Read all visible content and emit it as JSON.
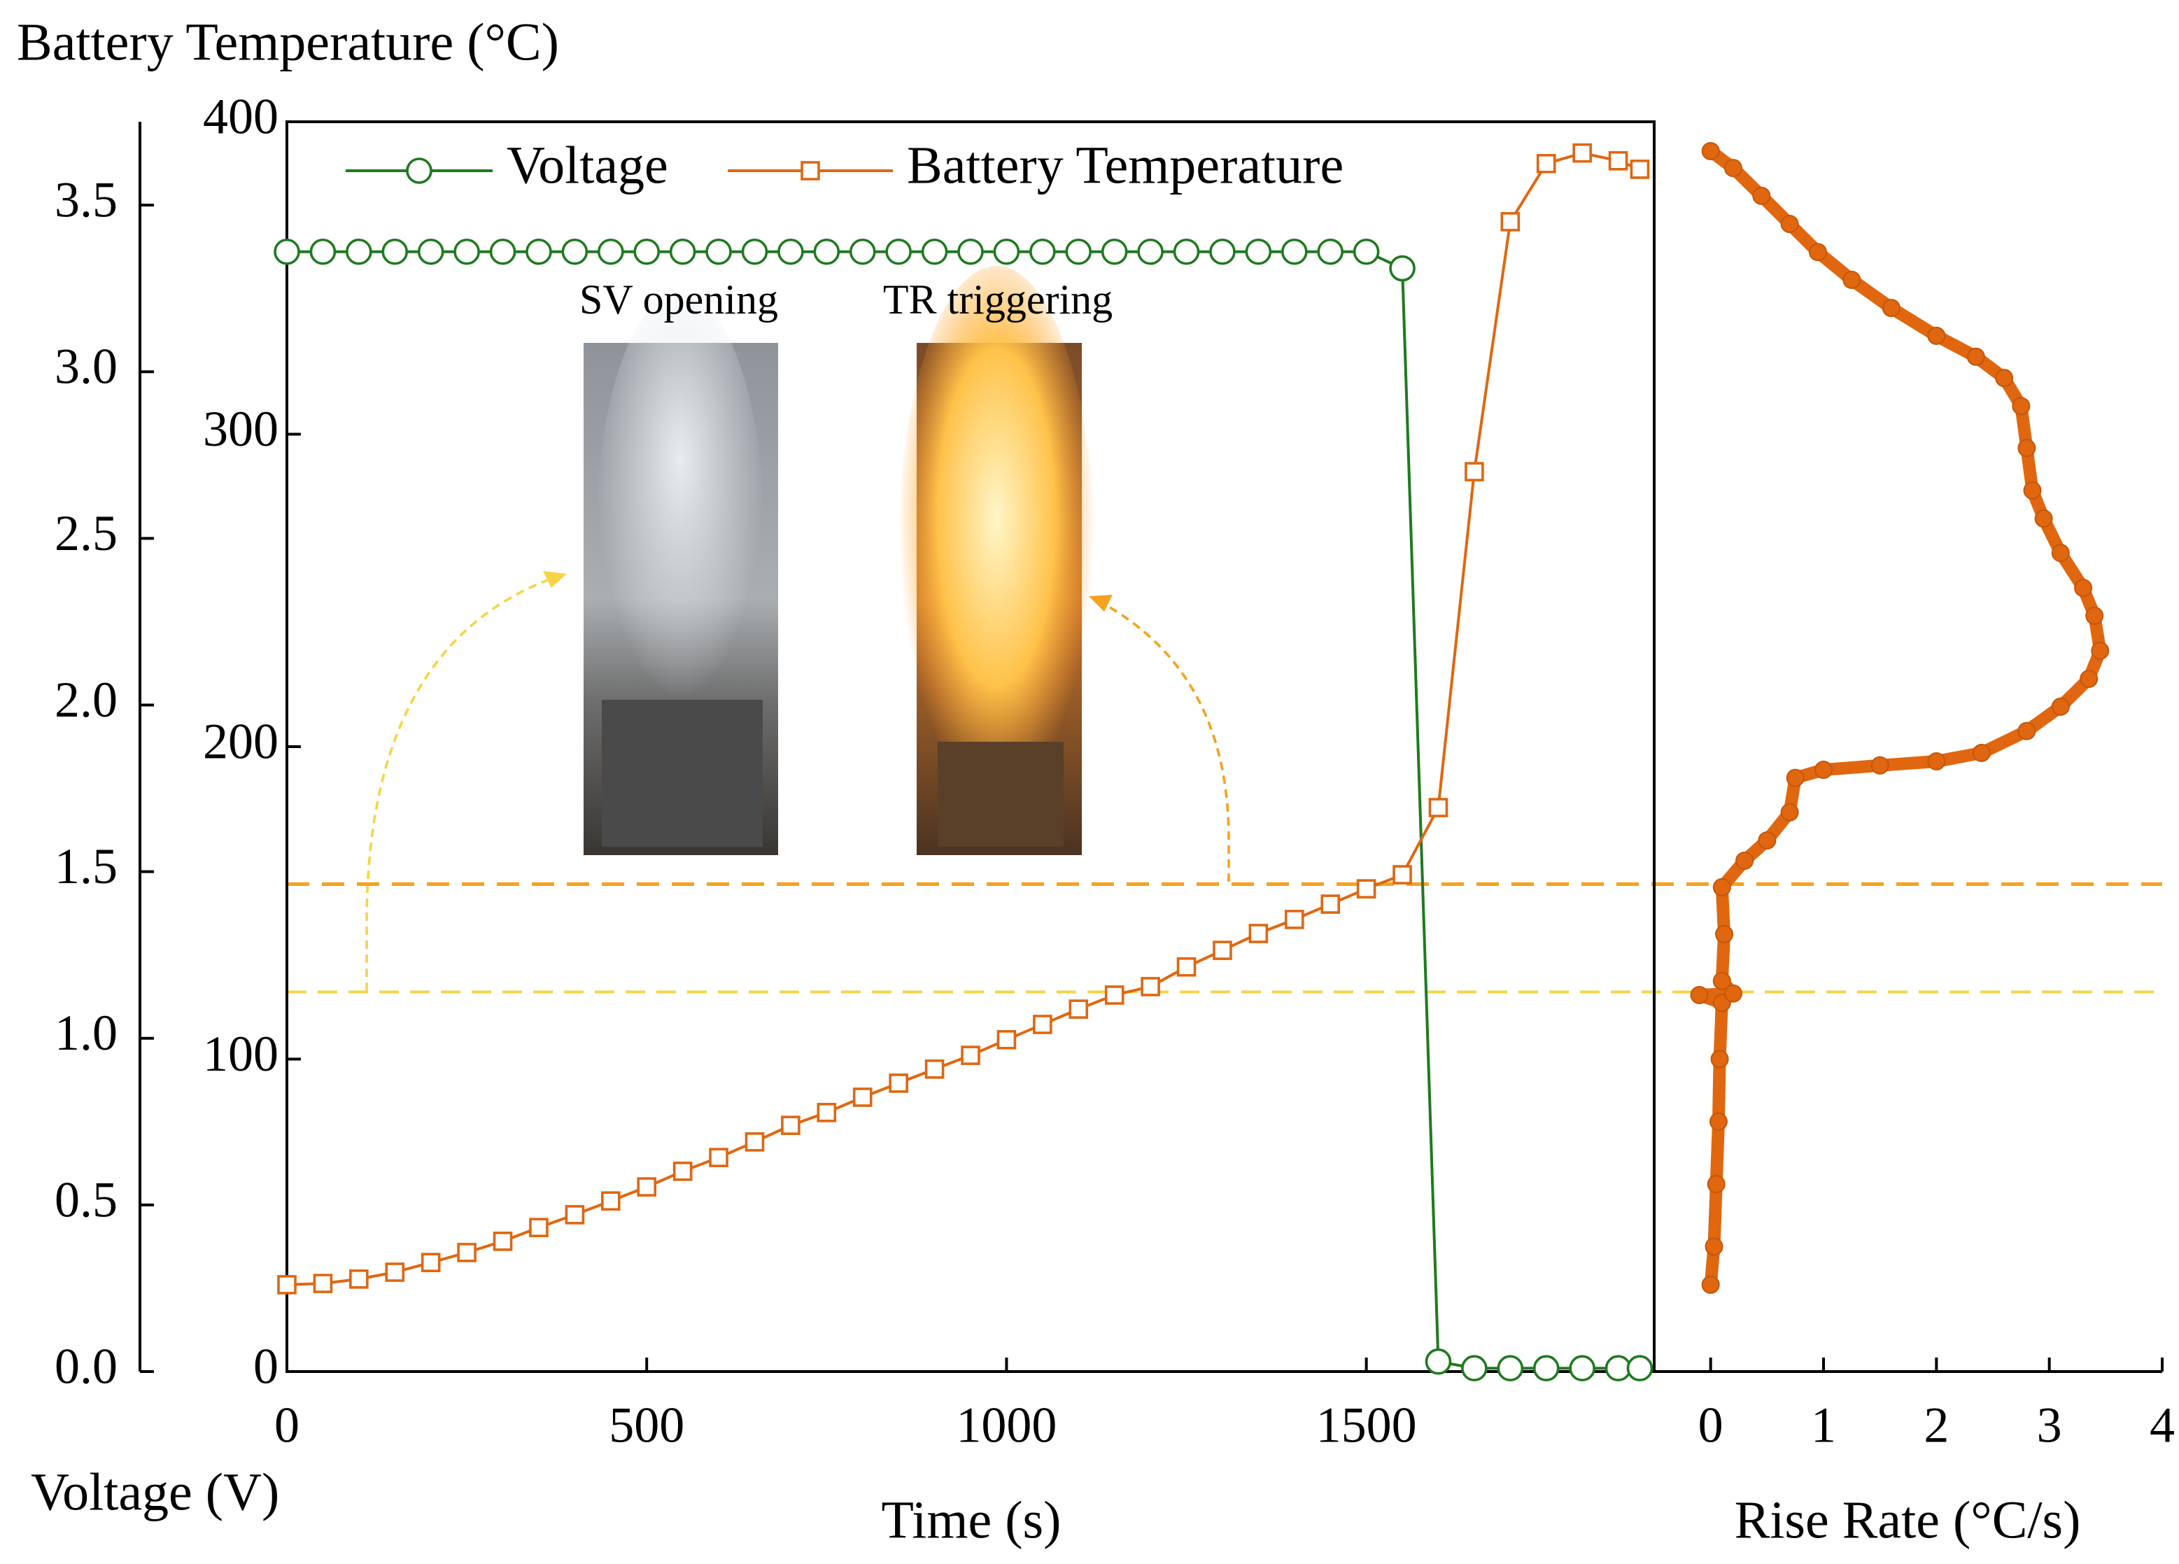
{
  "chart_data": [
    {
      "type": "line",
      "ylabel": "Battery Temperature (°C)",
      "y2label": "Voltage (V)",
      "xlabel": "Time (s)",
      "x": [
        0,
        50,
        100,
        150,
        200,
        250,
        300,
        350,
        400,
        450,
        500,
        550,
        600,
        650,
        700,
        750,
        800,
        850,
        900,
        950,
        1000,
        1050,
        1100,
        1150,
        1200,
        1250,
        1300,
        1350,
        1400,
        1450,
        1500,
        1550,
        1600,
        1650,
        1700,
        1750,
        1800,
        1850,
        1880
      ],
      "xlim": [
        0,
        1900
      ],
      "xticks": [
        0,
        500,
        1000,
        1500
      ],
      "ylim": [
        0,
        400
      ],
      "yticks": [
        0,
        100,
        200,
        300,
        400
      ],
      "y2lim": [
        0,
        3.75
      ],
      "y2ticks": [
        {
          "value": 0,
          "label": "0.0"
        },
        0.5,
        {
          "value": 1,
          "label": "1.0"
        },
        1.5,
        {
          "value": 2,
          "label": "2.0"
        },
        2.5,
        {
          "value": 3,
          "label": "3.0"
        },
        3.5
      ],
      "series": [
        {
          "name": "Voltage",
          "color": "#1f7a1f",
          "marker": "circle",
          "axis": "y2",
          "values": [
            3.36,
            3.36,
            3.36,
            3.36,
            3.36,
            3.36,
            3.36,
            3.36,
            3.36,
            3.36,
            3.36,
            3.36,
            3.36,
            3.36,
            3.36,
            3.36,
            3.36,
            3.36,
            3.36,
            3.36,
            3.36,
            3.36,
            3.36,
            3.36,
            3.36,
            3.36,
            3.36,
            3.36,
            3.36,
            3.36,
            3.36,
            3.31,
            0.03,
            0.01,
            0.01,
            0.01,
            0.01,
            0.01,
            0.01
          ]
        },
        {
          "name": "Battery Temperature",
          "color": "#e0670f",
          "marker": "square",
          "values": [
            27.8,
            28.2,
            29.6,
            31.8,
            34.9,
            38.1,
            41.7,
            46.1,
            50.2,
            54.6,
            59.1,
            64.1,
            68.5,
            73.5,
            78.8,
            82.9,
            87.8,
            92.3,
            96.8,
            101.2,
            106.2,
            111.1,
            116,
            120.5,
            123.2,
            129.5,
            134.8,
            140.2,
            144.7,
            149.6,
            154.5,
            159,
            180.5,
            288,
            368,
            386.6,
            390,
            387.5,
            384.8
          ]
        }
      ],
      "hlines": [
        {
          "value": 156,
          "color": "#f5a21e"
        },
        {
          "value": 121.5,
          "color": "#f7d445"
        }
      ],
      "annotations": [
        {
          "text": "SV opening",
          "color": "#f5c518"
        },
        {
          "text": "TR triggering",
          "color": "#ea8a1a"
        }
      ],
      "legend": "upper left"
    },
    {
      "type": "scatter",
      "xlabel": "Rise Rate (°C/s)",
      "color": "#e0670f",
      "xlim": [
        -0.5,
        4
      ],
      "xticks": [
        0,
        1,
        2,
        3,
        4
      ],
      "ylim": [
        0,
        400
      ],
      "x": [
        0,
        0.03,
        0.05,
        0.07,
        0.08,
        0.1,
        -0.1,
        0.2,
        0.1,
        0.12,
        0.1,
        0.3,
        0.5,
        0.7,
        0.75,
        1.0,
        1.5,
        2.0,
        2.4,
        2.8,
        3.1,
        3.35,
        3.45,
        3.4,
        3.3,
        3.1,
        2.95,
        2.85,
        2.8,
        2.75,
        2.6,
        2.35,
        2.0,
        1.6,
        1.25,
        0.95,
        0.7,
        0.45,
        0.2,
        0
      ],
      "values": [
        27.8,
        40,
        60,
        80,
        100,
        118,
        120.5,
        121,
        125,
        140,
        155,
        163.5,
        170,
        179,
        190,
        192.6,
        194,
        195.3,
        198,
        205,
        212.8,
        221.7,
        230.7,
        241.9,
        250.8,
        262,
        273,
        282,
        295.6,
        309,
        318,
        324.8,
        331.5,
        340.4,
        349.4,
        358.3,
        367.3,
        376.3,
        385.2,
        390.6
      ]
    }
  ]
}
